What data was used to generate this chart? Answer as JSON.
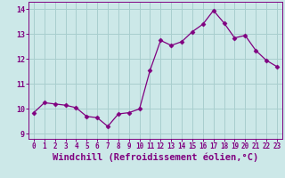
{
  "x": [
    0,
    1,
    2,
    3,
    4,
    5,
    6,
    7,
    8,
    9,
    10,
    11,
    12,
    13,
    14,
    15,
    16,
    17,
    18,
    19,
    20,
    21,
    22,
    23
  ],
  "y": [
    9.85,
    10.25,
    10.2,
    10.15,
    10.05,
    9.7,
    9.65,
    9.3,
    9.8,
    9.85,
    10.0,
    11.55,
    12.75,
    12.55,
    12.7,
    13.1,
    13.4,
    13.95,
    13.45,
    12.85,
    12.95,
    12.35,
    11.95,
    11.7
  ],
  "line_color": "#800080",
  "marker": "D",
  "marker_size": 2.5,
  "bg_color": "#cce8e8",
  "grid_color": "#a8cece",
  "xlabel": "Windchill (Refroidissement éolien,°C)",
  "ylim": [
    8.8,
    14.3
  ],
  "xlim": [
    -0.5,
    23.5
  ],
  "yticks": [
    9,
    10,
    11,
    12,
    13,
    14
  ],
  "xticks": [
    0,
    1,
    2,
    3,
    4,
    5,
    6,
    7,
    8,
    9,
    10,
    11,
    12,
    13,
    14,
    15,
    16,
    17,
    18,
    19,
    20,
    21,
    22,
    23
  ],
  "axis_color": "#800080",
  "tick_color": "#800080",
  "label_fontsize": 7.5,
  "tick_fontsize": 6.0,
  "xtick_fontsize": 5.5
}
